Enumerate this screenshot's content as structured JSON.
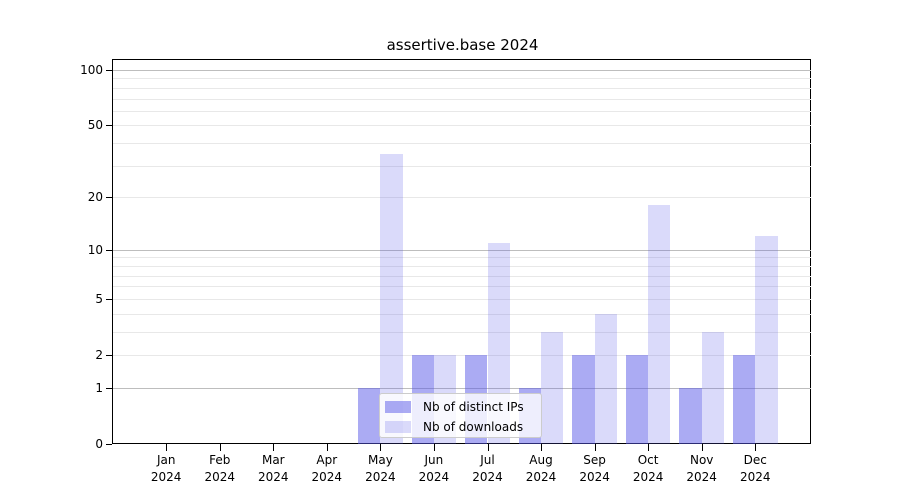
{
  "chart_data": {
    "type": "bar",
    "title": "assertive.base 2024",
    "x_categories": [
      "Jan",
      "Feb",
      "Mar",
      "Apr",
      "May",
      "Jun",
      "Jul",
      "Aug",
      "Sep",
      "Oct",
      "Nov",
      "Dec"
    ],
    "x_year": "2024",
    "series": [
      {
        "name": "Nb of distinct IPs",
        "color": "rgba(88,88,232,0.5)",
        "values": [
          0,
          0,
          0,
          0,
          1,
          2,
          2,
          1,
          2,
          2,
          1,
          2
        ]
      },
      {
        "name": "Nb of downloads",
        "color": "rgba(88,88,232,0.22)",
        "values": [
          0,
          0,
          0,
          0,
          35,
          2,
          11,
          3,
          4,
          18,
          3,
          12
        ]
      }
    ],
    "yscale": "log1p",
    "ylim": [
      0,
      113
    ],
    "y_tick_labels": [
      0,
      1,
      2,
      5,
      10,
      20,
      50,
      100
    ],
    "y_major_gridlines": [
      1,
      10,
      100
    ],
    "y_minor_gridlines": [
      2,
      3,
      4,
      5,
      6,
      7,
      8,
      9,
      20,
      30,
      40,
      50,
      60,
      70,
      80,
      90
    ],
    "grid": true,
    "legend_position": "inside-bottom-center",
    "colors": {
      "bar_distinct_ips": "rgba(88,88,232,0.5)",
      "bar_downloads": "rgba(88,88,232,0.22)",
      "grid_major": "#bdbdbd",
      "grid_minor": "#e8e8e8",
      "axis": "#000000",
      "background": "#ffffff"
    }
  }
}
